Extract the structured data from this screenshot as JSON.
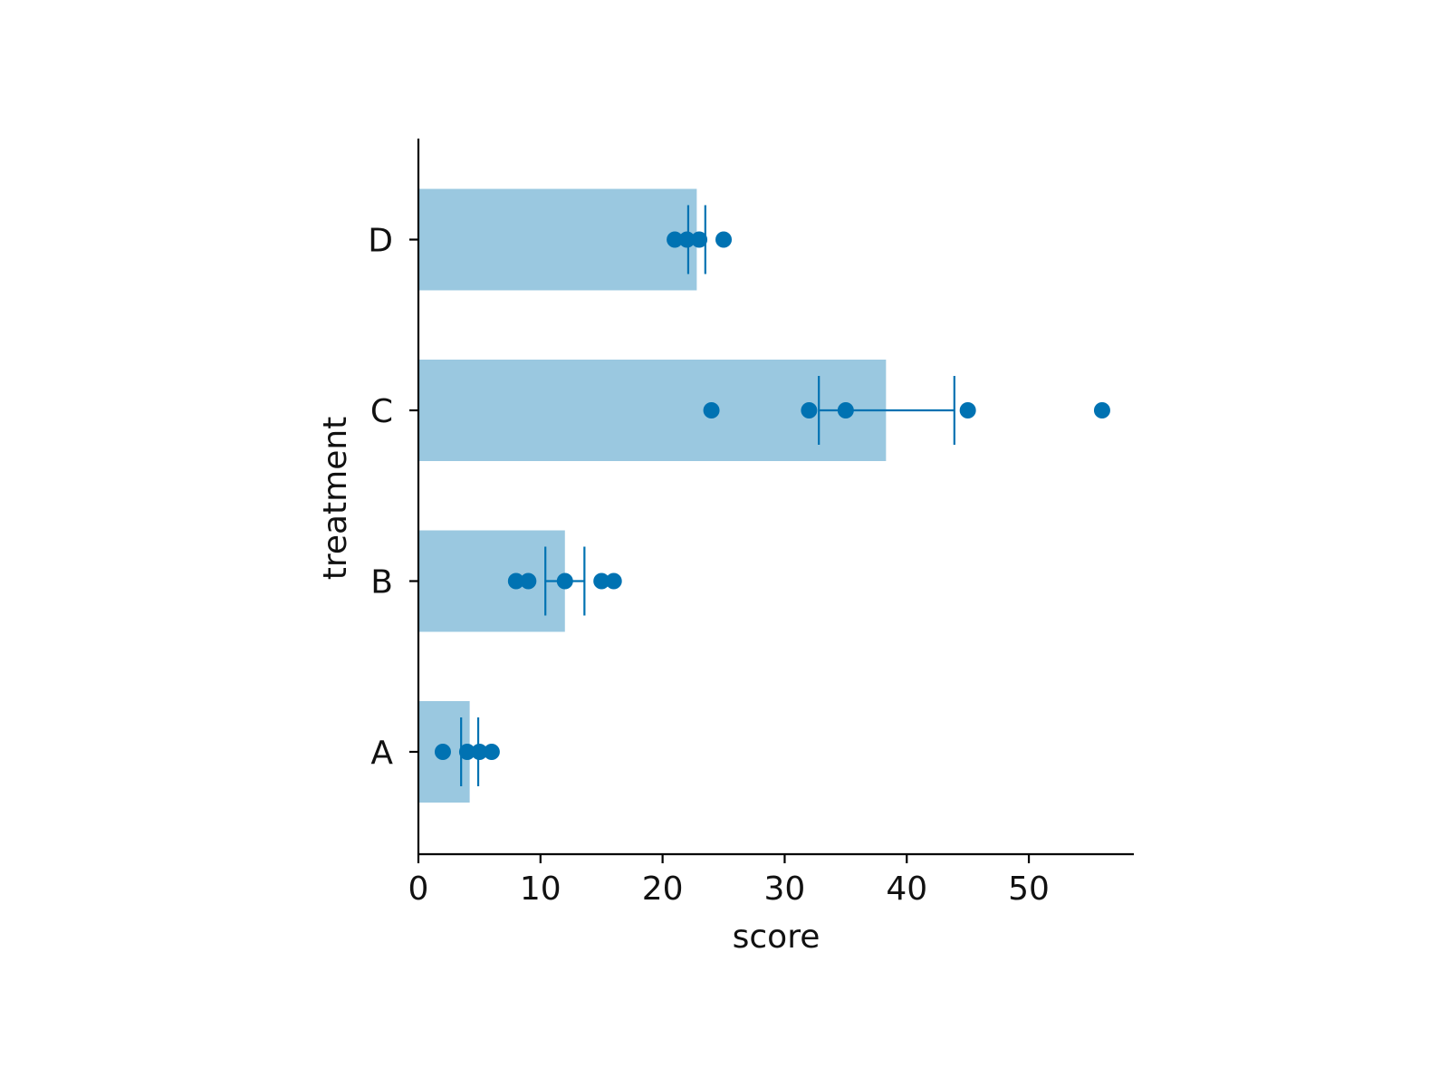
{
  "chart_data": {
    "type": "bar",
    "orientation": "horizontal",
    "title": "",
    "xlabel": "score",
    "ylabel": "treatment",
    "xlim": [
      0,
      58.6
    ],
    "xticks": [
      0,
      10,
      20,
      30,
      40,
      50
    ],
    "categories": [
      "A",
      "B",
      "C",
      "D"
    ],
    "means": [
      4.2,
      12.0,
      38.3,
      22.8
    ],
    "errorbars": [
      {
        "low": 3.5,
        "high": 4.9
      },
      {
        "low": 10.4,
        "high": 13.6
      },
      {
        "low": 32.8,
        "high": 43.9
      },
      {
        "low": 22.1,
        "high": 23.5
      }
    ],
    "points": [
      [
        2.0,
        4.0,
        5.0,
        6.0
      ],
      [
        8.0,
        9.0,
        12.0,
        15.0,
        16.0
      ],
      [
        24.0,
        32.0,
        35.0,
        45.0,
        56.0
      ],
      [
        21.0,
        22.0,
        23.0,
        25.0
      ]
    ],
    "grid": false,
    "legend": "none",
    "colors": {
      "bar": "#9ac8e0",
      "point": "#0072b2",
      "errorbar": "#0072b2",
      "axis": "#000000"
    }
  }
}
